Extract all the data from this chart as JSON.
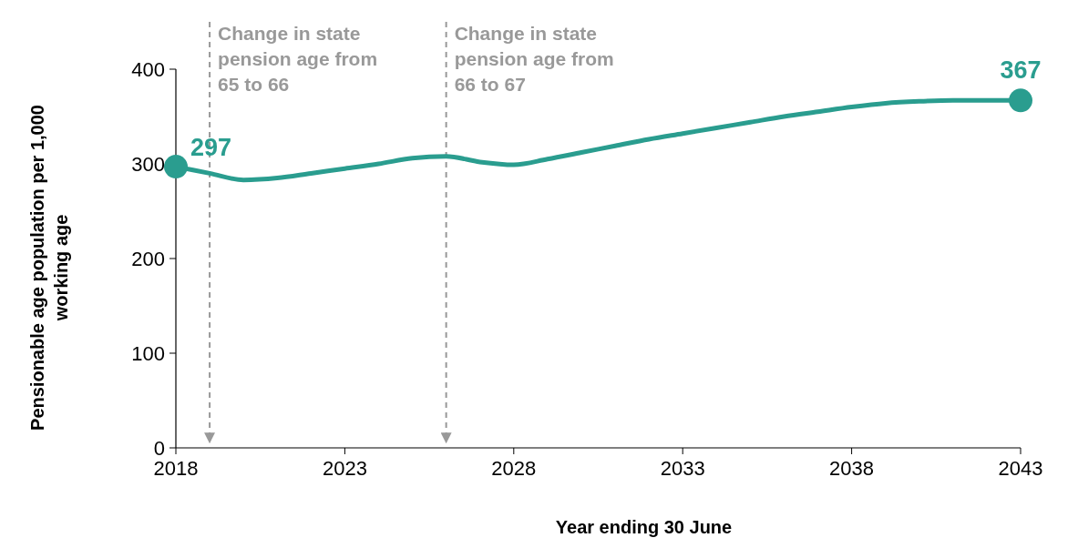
{
  "chart_data": {
    "type": "line",
    "xlabel": "Year ending 30 June",
    "ylabel": "Pensionable age population per 1,000 working age",
    "xlim": [
      2018,
      2043
    ],
    "xticks": [
      2018,
      2023,
      2028,
      2033,
      2038,
      2043
    ],
    "ylim": [
      0,
      400
    ],
    "yticks": [
      0,
      100,
      200,
      300,
      400
    ],
    "grid": false,
    "series": [
      {
        "color": "#2a9d8f",
        "marker": "none",
        "x": [
          2018,
          2019,
          2020,
          2021,
          2022,
          2023,
          2024,
          2025,
          2026,
          2027,
          2028,
          2029,
          2030,
          2031,
          2032,
          2033,
          2034,
          2035,
          2036,
          2037,
          2038,
          2039,
          2040,
          2041,
          2042,
          2043
        ],
        "values": [
          297,
          290,
          283,
          285,
          290,
          295,
          300,
          306,
          308,
          302,
          299,
          305,
          312,
          319,
          326,
          332,
          338,
          344,
          350,
          355,
          360,
          364,
          366,
          367,
          367,
          367
        ]
      },
      {
        "type": "scatter",
        "color": "#2a9d8f",
        "marker": "circle",
        "x": [
          2018,
          2043
        ],
        "values": [
          297,
          367
        ],
        "value_labels": [
          "297",
          "367"
        ]
      }
    ],
    "ref_lines": [
      {
        "axis": "x",
        "value": 2019,
        "label": "Change in state pension age from 65 to 66",
        "color": "#999999",
        "line_style": "dashed"
      },
      {
        "axis": "x",
        "value": 2026,
        "label": "Change in state pension age from 66 to 67",
        "color": "#999999",
        "line_style": "dashed"
      }
    ]
  }
}
